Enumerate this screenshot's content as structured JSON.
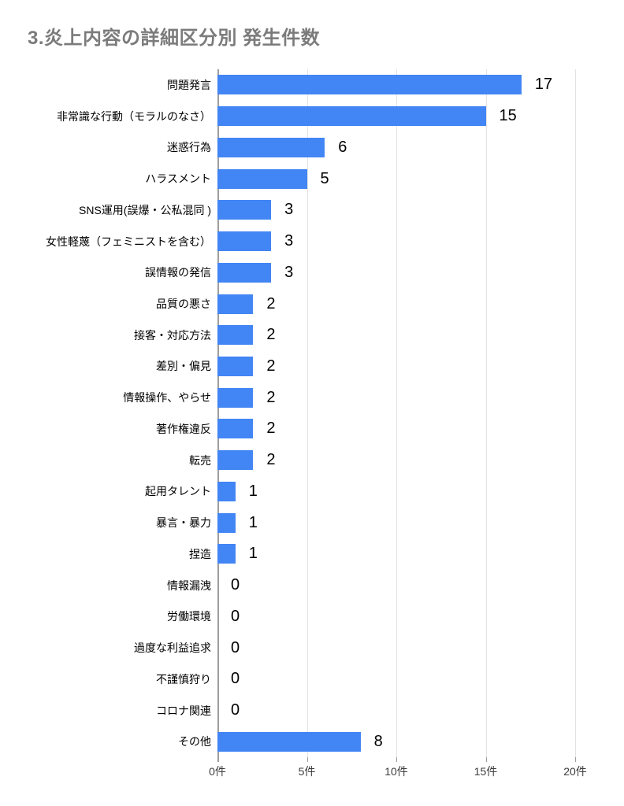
{
  "title": "3.炎上内容の詳細区分別 発生件数",
  "chart_data": {
    "type": "bar",
    "orientation": "horizontal",
    "title": "3.炎上内容の詳細区分別 発生件数",
    "categories": [
      "問題発言",
      "非常識な行動（モラルのなさ）",
      "迷惑行為",
      "ハラスメント",
      "SNS運用(誤爆・公私混同 )",
      "女性軽蔑（フェミニストを含む）",
      "誤情報の発信",
      "品質の悪さ",
      "接客・対応方法",
      "差別・偏見",
      "情報操作、やらせ",
      "著作権違反",
      "転売",
      "起用タレント",
      "暴言・暴力",
      "捏造",
      "情報漏洩",
      "労働環境",
      "過度な利益追求",
      "不謹慎狩り",
      "コロナ関連",
      "その他"
    ],
    "values": [
      17,
      15,
      6,
      5,
      3,
      3,
      3,
      2,
      2,
      2,
      2,
      2,
      2,
      1,
      1,
      1,
      0,
      0,
      0,
      0,
      0,
      8
    ],
    "value_labels_shown": true,
    "xlabel": "",
    "ylabel": "",
    "x_ticks": [
      "0件",
      "5件",
      "10件",
      "15件",
      "20件"
    ],
    "x_tick_values": [
      0,
      5,
      10,
      15,
      20
    ],
    "xlim": [
      0,
      20
    ],
    "grid": true,
    "legend": "none"
  },
  "colors": {
    "bar": "#4285f4",
    "title_text": "#7b7b7b",
    "category_text": "#000000",
    "value_text": "#000000",
    "axis_text": "#3c3c3c",
    "gridline": "#e3e3e3",
    "axis_line": "#9e9e9e",
    "background": "#ffffff"
  }
}
